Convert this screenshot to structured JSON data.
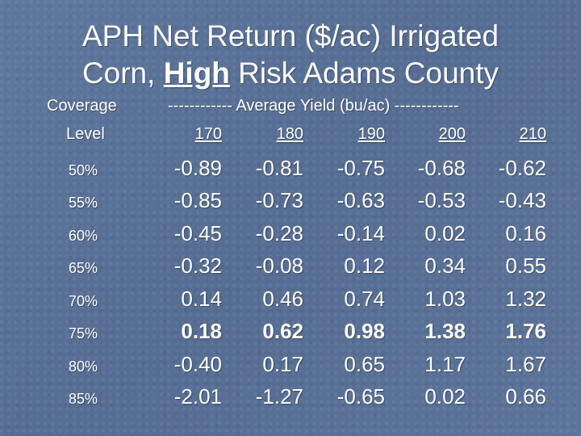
{
  "title": {
    "line1": "APH Net Return ($/ac) Irrigated",
    "line2_pre": "Corn, ",
    "line2_emph": "High",
    "line2_post": " Risk Adams County"
  },
  "table": {
    "coverage_header": "Coverage",
    "level_header": "Level",
    "yield_header": "------------ Average Yield (bu/ac) ------------",
    "yields": [
      "170",
      "180",
      "190",
      "200",
      "210"
    ],
    "rows": [
      {
        "level": "50%",
        "values": [
          "-0.89",
          "-0.81",
          "-0.75",
          "-0.68",
          "-0.62"
        ],
        "bold": false
      },
      {
        "level": "55%",
        "values": [
          "-0.85",
          "-0.73",
          "-0.63",
          "-0.53",
          "-0.43"
        ],
        "bold": false
      },
      {
        "level": "60%",
        "values": [
          "-0.45",
          "-0.28",
          "-0.14",
          "0.02",
          "0.16"
        ],
        "bold": false
      },
      {
        "level": "65%",
        "values": [
          "-0.32",
          "-0.08",
          "0.12",
          "0.34",
          "0.55"
        ],
        "bold": false
      },
      {
        "level": "70%",
        "values": [
          "0.14",
          "0.46",
          "0.74",
          "1.03",
          "1.32"
        ],
        "bold": false
      },
      {
        "level": "75%",
        "values": [
          "0.18",
          "0.62",
          "0.98",
          "1.38",
          "1.76"
        ],
        "bold": true
      },
      {
        "level": "80%",
        "values": [
          "-0.40",
          "0.17",
          "0.65",
          "1.17",
          "1.67"
        ],
        "bold": false
      },
      {
        "level": "85%",
        "values": [
          "-2.01",
          "-1.27",
          "-0.65",
          "0.02",
          "0.66"
        ],
        "bold": false
      }
    ]
  }
}
